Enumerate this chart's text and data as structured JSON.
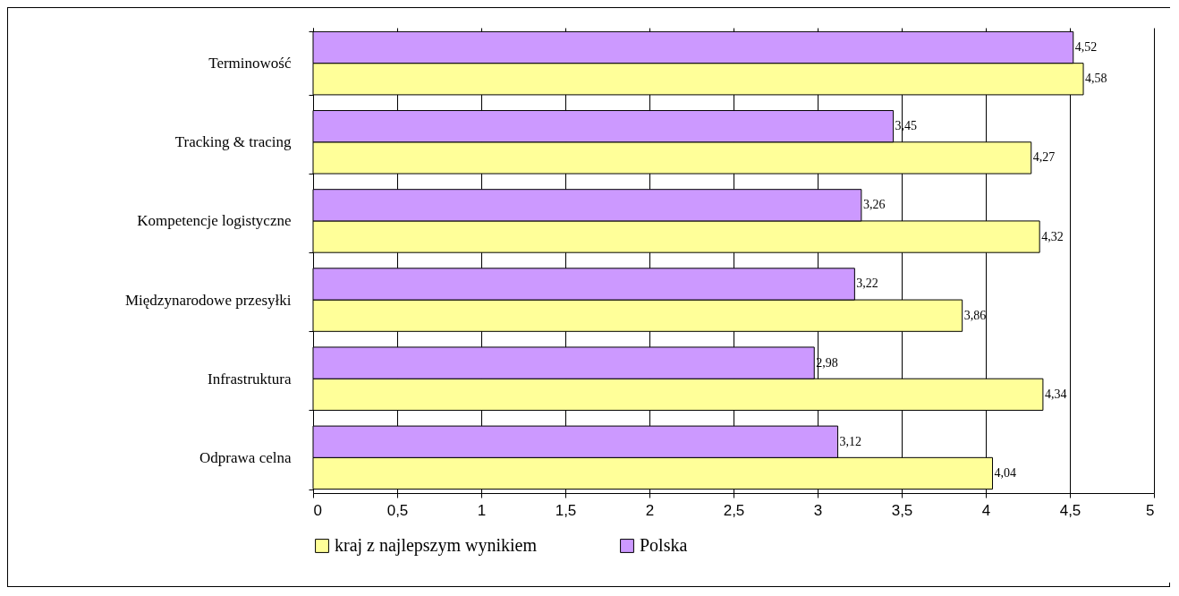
{
  "chart_data": {
    "type": "bar",
    "orientation": "horizontal",
    "categories": [
      "Terminowość",
      "Tracking & tracing",
      "Kompetencje logistyczne",
      "Międzynarodowe przesyłki",
      "Infrastruktura",
      "Odprawa celna"
    ],
    "series": [
      {
        "name": "kraj z najlepszym wynikiem",
        "color": "#ffff99",
        "values": [
          4.58,
          4.27,
          4.32,
          3.86,
          4.34,
          4.04
        ],
        "value_labels": [
          "4,58",
          "4,27",
          "4,32",
          "3,86",
          "4,34",
          "4,04"
        ]
      },
      {
        "name": "Polska",
        "color": "#cc99ff",
        "values": [
          4.52,
          3.45,
          3.26,
          3.22,
          2.98,
          3.12
        ],
        "value_labels": [
          "4,52",
          "3,45",
          "3,26",
          "3,22",
          "2,98",
          "3,12"
        ]
      }
    ],
    "xlim": [
      0,
      5
    ],
    "xticks": [
      0,
      {
        "value": 0.5,
        "label": "0,5"
      },
      1,
      {
        "value": 1.5,
        "label": "1,5"
      },
      2,
      {
        "value": 2.5,
        "label": "2,5"
      },
      3,
      {
        "value": 3.5,
        "label": "3,5"
      },
      4,
      {
        "value": 4.5,
        "label": "4,5"
      },
      5
    ],
    "grid": "x",
    "legend": "bottom"
  }
}
